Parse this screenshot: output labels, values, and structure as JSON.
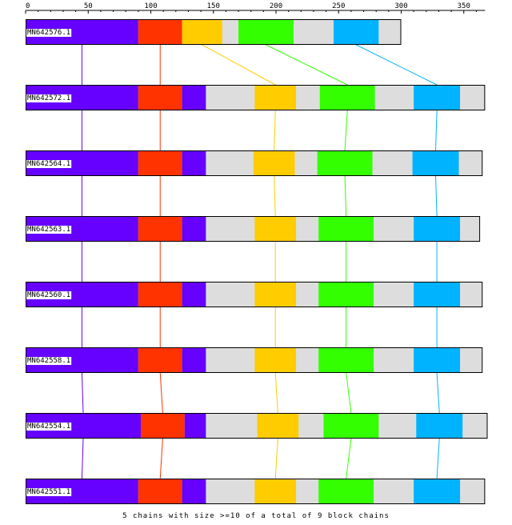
{
  "axis": {
    "ticks": [
      "0",
      "50",
      "100",
      "150",
      "200",
      "250",
      "300",
      "350"
    ],
    "tick_values": [
      0,
      50,
      100,
      150,
      200,
      250,
      300,
      350
    ],
    "max": 367
  },
  "colors": {
    "background_bar": "#dddddd",
    "blocks": [
      "#6600ff",
      "#ff3300",
      "#ffcc00",
      "#33ff00",
      "#00b3ff"
    ],
    "segment3": "#6600ff"
  },
  "tracks": [
    {
      "label": "MN642576.1",
      "length": 300,
      "blocks": [
        [
          0,
          90,
          0
        ],
        [
          90,
          125,
          1
        ],
        [
          125,
          157,
          2
        ],
        [
          170,
          214,
          3
        ],
        [
          246,
          282,
          4
        ]
      ]
    },
    {
      "label": "MN642572.1",
      "length": 367,
      "blocks": [
        [
          0,
          90,
          0
        ],
        [
          90,
          125,
          1
        ],
        [
          125,
          144,
          5
        ],
        [
          183,
          216,
          2
        ],
        [
          235,
          279,
          3
        ],
        [
          310,
          347,
          4
        ]
      ]
    },
    {
      "label": "MN642564.1",
      "length": 365,
      "blocks": [
        [
          0,
          90,
          0
        ],
        [
          90,
          125,
          1
        ],
        [
          125,
          144,
          5
        ],
        [
          182,
          215,
          2
        ],
        [
          233,
          277,
          3
        ],
        [
          309,
          346,
          4
        ]
      ]
    },
    {
      "label": "MN642563.1",
      "length": 363,
      "blocks": [
        [
          0,
          90,
          0
        ],
        [
          90,
          125,
          1
        ],
        [
          125,
          144,
          5
        ],
        [
          183,
          216,
          2
        ],
        [
          234,
          278,
          3
        ],
        [
          310,
          347,
          4
        ]
      ]
    },
    {
      "label": "MN642560.1",
      "length": 365,
      "blocks": [
        [
          0,
          90,
          0
        ],
        [
          90,
          125,
          1
        ],
        [
          125,
          144,
          5
        ],
        [
          183,
          216,
          2
        ],
        [
          234,
          278,
          3
        ],
        [
          310,
          347,
          4
        ]
      ]
    },
    {
      "label": "MN642558.1",
      "length": 365,
      "blocks": [
        [
          0,
          90,
          0
        ],
        [
          90,
          125,
          1
        ],
        [
          125,
          144,
          5
        ],
        [
          183,
          216,
          2
        ],
        [
          234,
          278,
          3
        ],
        [
          310,
          347,
          4
        ]
      ]
    },
    {
      "label": "MN642554.1",
      "length": 369,
      "blocks": [
        [
          0,
          92,
          0
        ],
        [
          92,
          127,
          1
        ],
        [
          127,
          144,
          5
        ],
        [
          185,
          218,
          2
        ],
        [
          238,
          282,
          3
        ],
        [
          312,
          349,
          4
        ]
      ]
    },
    {
      "label": "MN642551.1",
      "length": 367,
      "blocks": [
        [
          0,
          90,
          0
        ],
        [
          90,
          125,
          1
        ],
        [
          125,
          144,
          5
        ],
        [
          183,
          216,
          2
        ],
        [
          234,
          278,
          3
        ],
        [
          310,
          347,
          4
        ]
      ]
    }
  ],
  "footer": "5 chains with size >=10 of a total of 9 block chains"
}
